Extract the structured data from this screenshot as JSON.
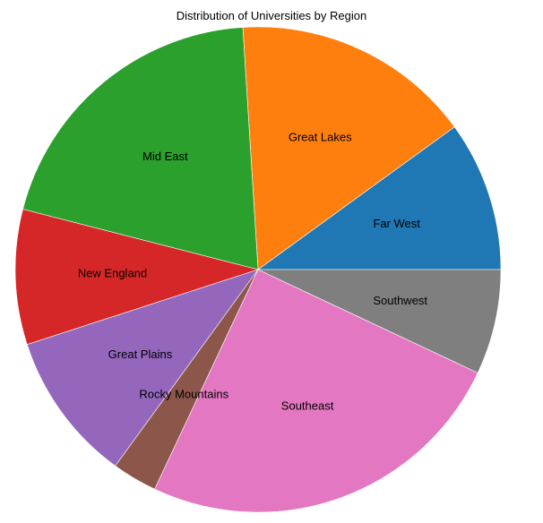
{
  "chart_data": {
    "type": "pie",
    "title": "Distribution of Universities by Region",
    "categories": [
      "Far West",
      "Great Lakes",
      "Mid East",
      "New England",
      "Great Plains",
      "Rocky Mountains",
      "Southeast",
      "Southwest"
    ],
    "values": [
      10,
      16,
      20,
      9,
      10,
      3,
      25,
      7
    ],
    "colors": [
      "#1f77b4",
      "#ff7f0e",
      "#2ca02c",
      "#d62728",
      "#9467bd",
      "#8c564b",
      "#e377c2",
      "#7f7f7f"
    ],
    "start_angle_deg": 0,
    "direction": "counterclockwise",
    "legend": "none"
  }
}
